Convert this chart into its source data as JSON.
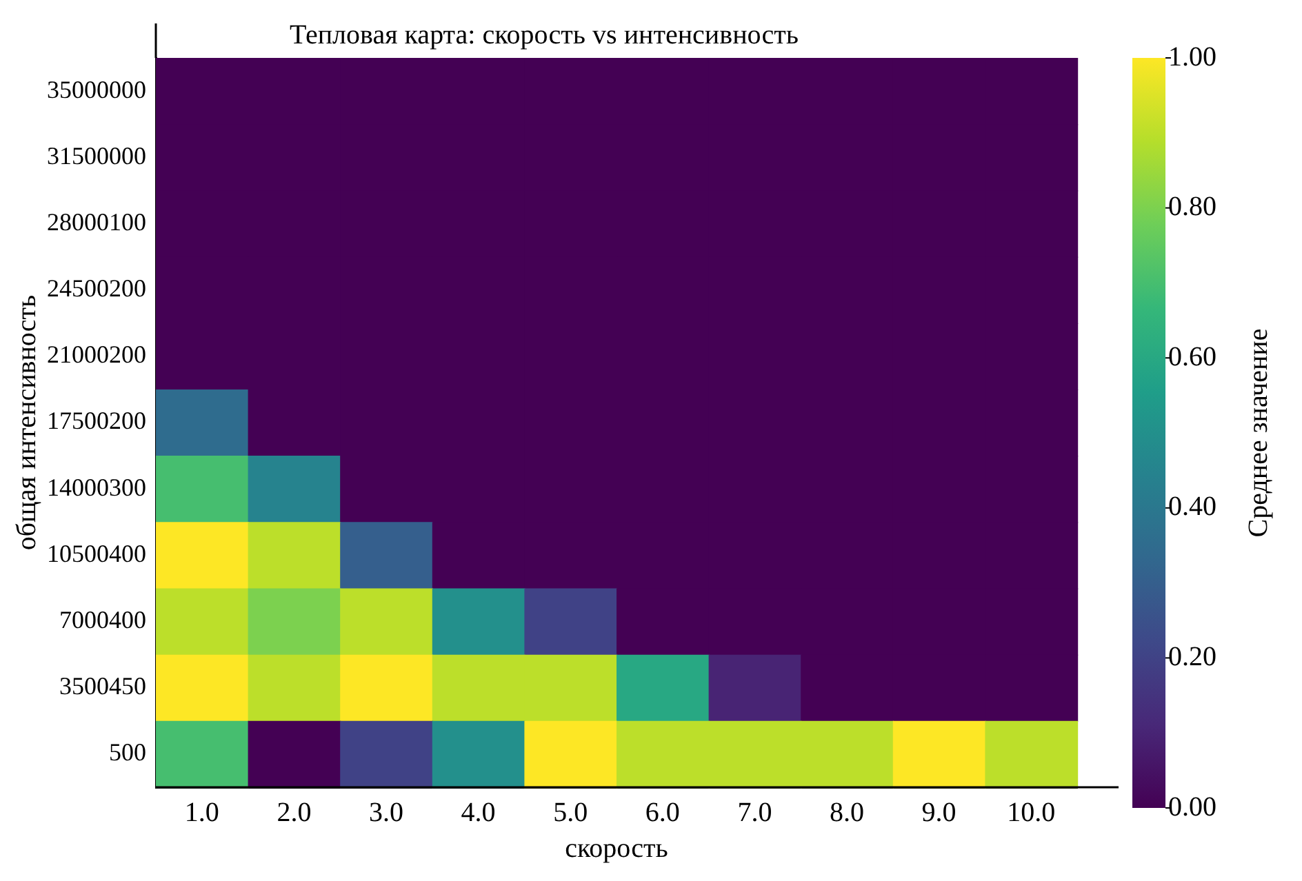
{
  "chart_data": {
    "type": "heatmap",
    "title": "Тепловая карта: скорость vs интенсивность",
    "xlabel": "скорость",
    "ylabel": "общая интенсивность",
    "clabel": "Среднее значение",
    "categories": [
      "1.0",
      "2.0",
      "3.0",
      "4.0",
      "5.0",
      "6.0",
      "7.0",
      "8.0",
      "9.0",
      "10.0"
    ],
    "y_categories": [
      "35000000",
      "31500000",
      "28000100",
      "24500200",
      "21000200",
      "17500200",
      "14000300",
      "10500400",
      "7000400",
      "3500450",
      "500"
    ],
    "cells": [
      [
        0,
        0,
        0,
        0,
        0,
        0,
        0,
        0,
        0,
        0
      ],
      [
        0,
        0,
        0,
        0,
        0,
        0,
        0,
        0,
        0,
        0
      ],
      [
        0,
        0,
        0,
        0,
        0,
        0,
        0,
        0,
        0,
        0
      ],
      [
        0,
        0,
        0,
        0,
        0,
        0,
        0,
        0,
        0,
        0
      ],
      [
        0,
        0,
        0,
        0,
        0,
        0,
        0,
        0,
        0,
        0
      ],
      [
        0.35,
        0,
        0,
        0,
        0,
        0,
        0,
        0,
        0,
        0
      ],
      [
        0.7,
        0.45,
        0,
        0,
        0,
        0,
        0,
        0,
        0,
        0
      ],
      [
        1.0,
        0.9,
        0.3,
        0,
        0,
        0,
        0,
        0,
        0,
        0
      ],
      [
        0.9,
        0.8,
        0.9,
        0.5,
        0.2,
        0,
        0,
        0,
        0,
        0
      ],
      [
        1.0,
        0.9,
        1.0,
        0.9,
        0.9,
        0.6,
        0.1,
        0,
        0,
        0
      ],
      [
        0.7,
        0,
        0.2,
        0.5,
        1.0,
        0.9,
        0.9,
        0.9,
        1.0,
        0.9
      ]
    ],
    "clim": [
      0,
      1
    ],
    "cticks": [
      {
        "value": 0,
        "label": "0.00"
      },
      {
        "value": 0.2,
        "label": "0.20"
      },
      {
        "value": 0.4,
        "label": "0.40"
      },
      {
        "value": 0.6,
        "label": "0.60"
      },
      {
        "value": 0.8,
        "label": "0.80"
      },
      {
        "value": 1,
        "label": "1.00"
      }
    ]
  }
}
